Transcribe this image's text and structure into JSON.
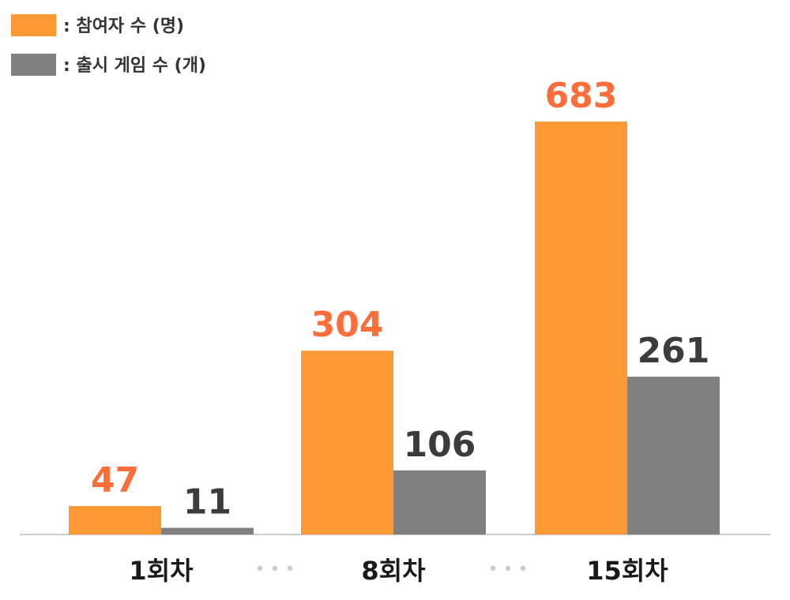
{
  "chart_data": {
    "type": "bar",
    "categories": [
      "1회차",
      "8회차",
      "15회차"
    ],
    "series": [
      {
        "name": ": 참여자 수 (명)",
        "values": [
          47,
          304,
          683
        ],
        "color": "#FF9933",
        "label_color": "#FF6E3A"
      },
      {
        "name": ": 출시 게임 수 (개)",
        "values": [
          11,
          106,
          261
        ],
        "color": "#808080",
        "label_color": "#3C3C3C"
      }
    ],
    "ylim": [
      0,
      683
    ],
    "grid": false,
    "legend": "top-left",
    "separator": "•••",
    "separator_color": "#CCCCCC",
    "axis_color": "#CCCCCC"
  }
}
